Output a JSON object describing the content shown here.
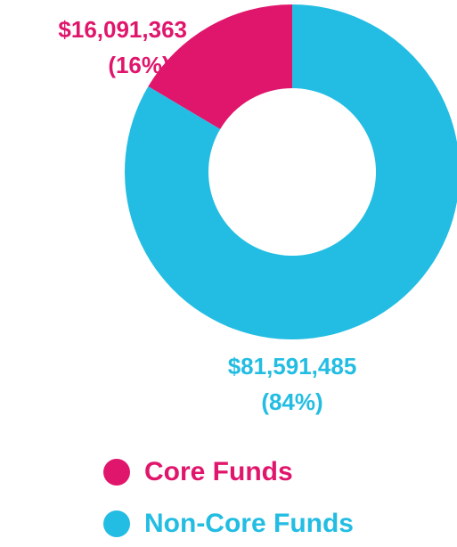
{
  "chart_data": {
    "type": "donut",
    "categories": [
      "Core Funds",
      "Non-Core Funds"
    ],
    "values": [
      16091363,
      81591485
    ],
    "value_labels": [
      "$16,091,363",
      "$81,591,485"
    ],
    "percents": [
      16,
      84
    ],
    "percent_labels": [
      "(16%)",
      "(84%)"
    ],
    "colors": [
      "#e0166c",
      "#23bde3"
    ],
    "legend": "bottom"
  }
}
